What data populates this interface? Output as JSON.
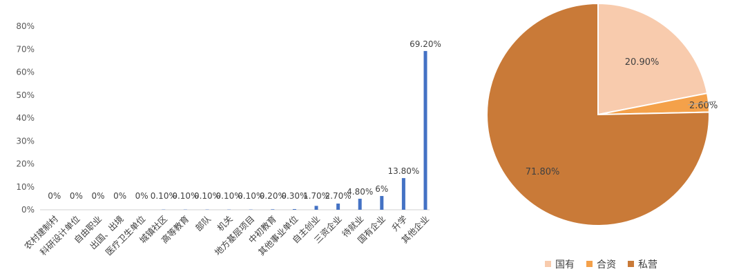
{
  "chart_data": [
    {
      "type": "bar",
      "categories": [
        "农村建制村",
        "科研设计单位",
        "自由职业",
        "出国、出境",
        "医疗卫生单位",
        "城镇社区",
        "高等教育",
        "部队",
        "机关",
        "地方基层项目",
        "中初教育",
        "其他事业单位",
        "自主创业",
        "三资企业",
        "待就业",
        "国有企业",
        "升学",
        "其他企业"
      ],
      "values": [
        0,
        0,
        0,
        0,
        0,
        0.1,
        0.1,
        0.1,
        0.1,
        0.1,
        0.2,
        0.3,
        1.7,
        2.7,
        4.8,
        6,
        13.8,
        69.2
      ],
      "data_labels": [
        "0%",
        "0%",
        "0%",
        "0%",
        "0%",
        "0.10%",
        "0.10%",
        "0.10%",
        "0.10%",
        "0.10%",
        "0.20%",
        "0.30%",
        "1.70%",
        "2.70%",
        "4.80%",
        "6%",
        "13.80%",
        "69.20%"
      ],
      "yticks": [
        "0%",
        "10%",
        "20%",
        "30%",
        "40%",
        "50%",
        "60%",
        "70%",
        "80%"
      ],
      "ylim": [
        0,
        80
      ],
      "bar_color": "#4472c4",
      "grid": false
    },
    {
      "type": "pie",
      "labels": [
        "国有",
        "合资",
        "私营"
      ],
      "values": [
        20.9,
        2.6,
        71.8
      ],
      "data_labels": [
        "20.90%",
        "2.60%",
        "71.80%"
      ],
      "colors": [
        "#f8cbad",
        "#f4a14a",
        "#c97a38"
      ],
      "legend_position": "bottom"
    }
  ]
}
